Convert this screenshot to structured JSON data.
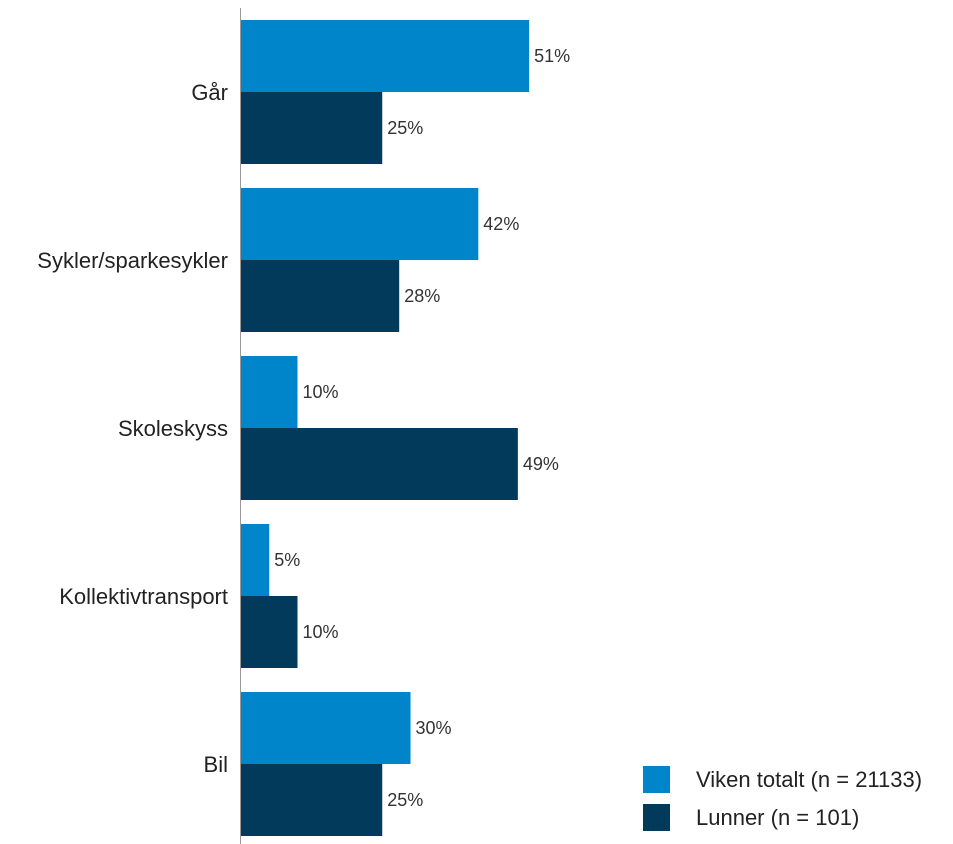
{
  "chart_data": {
    "type": "bar",
    "orientation": "horizontal",
    "categories": [
      "Går",
      "Sykler/sparkesykler",
      "Skoleskyss",
      "Kollektivtransport",
      "Bil"
    ],
    "series": [
      {
        "name": "Viken totalt (n = 21133)",
        "values": [
          51,
          42,
          10,
          5,
          30
        ],
        "color": "#0085CA"
      },
      {
        "name": "Lunner (n = 101)",
        "values": [
          25,
          28,
          49,
          10,
          25
        ],
        "color": "#023A5B"
      }
    ],
    "value_labels": [
      [
        "51%",
        "42%",
        "10%",
        "5%",
        "30%"
      ],
      [
        "25%",
        "28%",
        "49%",
        "10%",
        "25%"
      ]
    ],
    "xlim": [
      0,
      100
    ],
    "title": "",
    "xlabel": "",
    "ylabel": "",
    "grid": false,
    "legend_position": "bottom-right"
  }
}
